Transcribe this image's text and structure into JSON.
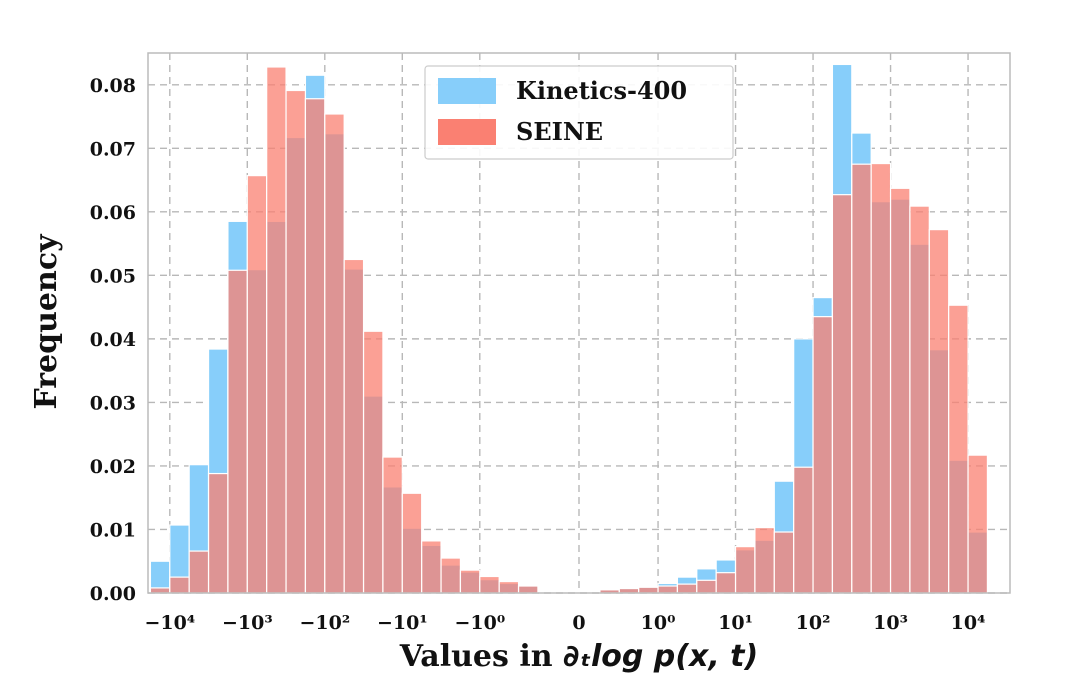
{
  "chart_data": {
    "type": "bar",
    "xlabel": "Values in ∂ₜlog p(x, t)",
    "ylabel": "Frequency",
    "ylim": [
      0,
      0.085
    ],
    "grid": true,
    "legend_position": "top-center",
    "colors": {
      "Kinetics-400": "#87CEFA",
      "SEINE": "#FA8072"
    },
    "x_tick_labels": [
      "−10⁴",
      "−10³",
      "−10²",
      "−10¹",
      "−10⁰",
      "0",
      "10⁰",
      "10¹",
      "10²",
      "10³",
      "10⁴"
    ],
    "y_tick_labels": [
      "0.00",
      "0.01",
      "0.02",
      "0.03",
      "0.04",
      "0.05",
      "0.06",
      "0.07",
      "0.08"
    ],
    "y_ticks": [
      0,
      0.01,
      0.02,
      0.03,
      0.04,
      0.05,
      0.06,
      0.07,
      0.08
    ],
    "series": [
      {
        "name": "Kinetics-400",
        "negative_bins": {
          "log10_abs_edges_from": 4.25,
          "log10_abs_edges_to": -0.75,
          "bin_width": 0.25,
          "values": [
            0.005,
            0.0107,
            0.0202,
            0.0384,
            0.0585,
            0.0509,
            0.0585,
            0.0717,
            0.0815,
            0.0723,
            0.051,
            0.031,
            0.0167,
            0.0102,
            0.0075,
            0.0044,
            0.0033,
            0.0021,
            0.0015,
            0.0011
          ]
        },
        "positive_bins": {
          "log10_edges_from": -0.75,
          "log10_edges_to": 4.25,
          "bin_width": 0.25,
          "values": [
            0.0005,
            0.0008,
            0.001,
            0.0015,
            0.0025,
            0.0038,
            0.0052,
            0.0068,
            0.0083,
            0.0176,
            0.04,
            0.0465,
            0.0832,
            0.0724,
            0.0616,
            0.062,
            0.0549,
            0.0383,
            0.0209,
            0.0096
          ]
        }
      },
      {
        "name": "SEINE",
        "negative_bins": {
          "log10_abs_edges_from": 4.25,
          "log10_abs_edges_to": -0.75,
          "bin_width": 0.25,
          "values": [
            0.0008,
            0.0025,
            0.0066,
            0.0188,
            0.0508,
            0.0657,
            0.0828,
            0.0791,
            0.0778,
            0.0754,
            0.0525,
            0.0412,
            0.0214,
            0.0157,
            0.0082,
            0.0055,
            0.0036,
            0.0026,
            0.0018,
            0.0011
          ]
        },
        "positive_bins": {
          "log10_edges_from": -0.75,
          "log10_edges_to": 4.25,
          "bin_width": 0.25,
          "values": [
            0.0005,
            0.0007,
            0.0009,
            0.0011,
            0.0014,
            0.002,
            0.0032,
            0.0073,
            0.0103,
            0.0096,
            0.0198,
            0.0435,
            0.0627,
            0.0675,
            0.0676,
            0.0637,
            0.0609,
            0.0572,
            0.0453,
            0.0217
          ]
        }
      }
    ]
  }
}
